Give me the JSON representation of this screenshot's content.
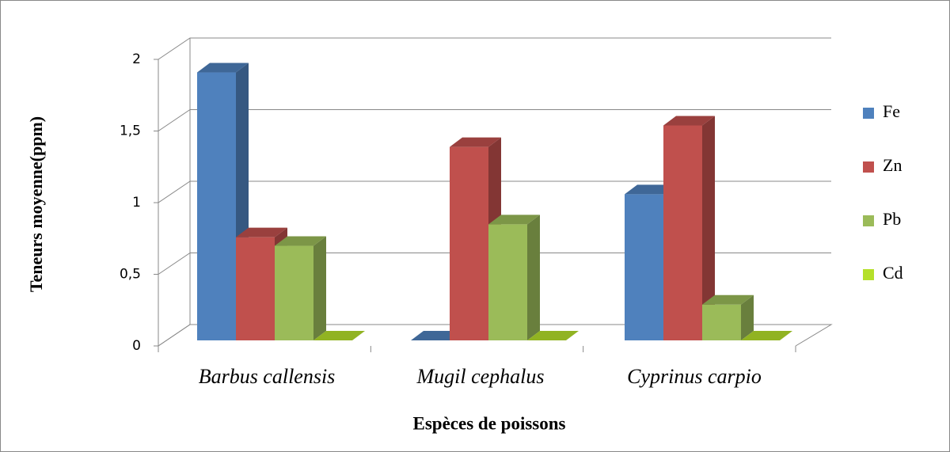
{
  "chart_data": {
    "type": "bar3d",
    "x_label": "Espèces de poissons",
    "y_label": "Teneurs moyenne(ppm)",
    "categories": [
      "Barbus callensis",
      "Mugil cephalus",
      "Cyprinus carpio"
    ],
    "series": [
      {
        "name": "Fe",
        "color": "#4f81bd",
        "values": [
          1.87,
          0,
          1.02
        ]
      },
      {
        "name": "Zn",
        "color": "#c0504d",
        "values": [
          0.72,
          1.35,
          1.5
        ]
      },
      {
        "name": "Pb",
        "color": "#9bbb59",
        "values": [
          0.66,
          0.81,
          0.25
        ]
      },
      {
        "name": "Cd",
        "color": "#b5e02a",
        "values": [
          0,
          0,
          0
        ]
      }
    ],
    "ylim": [
      0,
      2
    ],
    "yticks": [
      0,
      {
        "value": 0.5,
        "label": "0,5"
      },
      1,
      {
        "value": 1.5,
        "label": "1,5"
      },
      2
    ],
    "grid": true,
    "legend": "right"
  }
}
